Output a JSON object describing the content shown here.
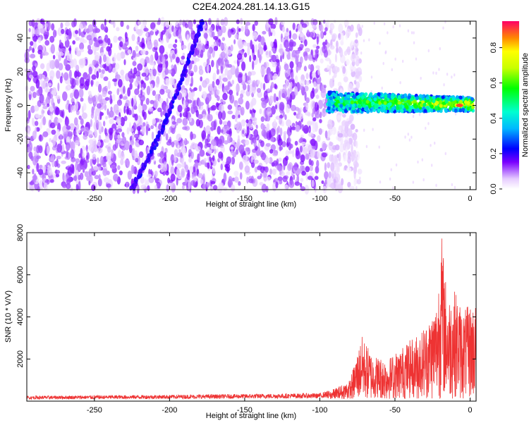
{
  "title": "C2E4.2024.281.14.13.G15",
  "chart_data": [
    {
      "type": "heatmap",
      "xlabel": "Height of straight line (km)",
      "ylabel": "Frequency (Hz)",
      "xlim": [
        -295,
        4
      ],
      "ylim": [
        -50,
        50
      ],
      "xticks": [
        -250,
        -200,
        -150,
        -100,
        -50,
        0
      ],
      "xtick_labels": [
        "-250",
        "-200",
        "-150",
        "-100",
        "-50",
        "0"
      ],
      "yticks": [
        40,
        20,
        0,
        -20,
        -40
      ],
      "ytick_labels": [
        "40",
        "20",
        "0",
        "-20",
        "-40"
      ],
      "colorbar": {
        "label": "Normalized spectral amplitude",
        "range": [
          0,
          0.95
        ],
        "ticks": [
          0.0,
          0.2,
          0.4,
          0.6,
          0.8
        ],
        "tick_labels": [
          "0.0",
          "0.2",
          "0.4",
          "0.6",
          "0.8"
        ]
      },
      "features": [
        {
          "name": "noise",
          "x_range": [
            -295,
            -85
          ],
          "level": 0.12
        },
        {
          "name": "streak",
          "x": [
            -225,
            -205,
            -190,
            -178
          ],
          "y": [
            -50,
            -15,
            20,
            50
          ],
          "level": 0.18
        },
        {
          "name": "signal-band",
          "x_range": [
            -95,
            2
          ],
          "y_center": 2,
          "y_halfwidth": 6,
          "level_range": [
            0.2,
            0.95
          ],
          "peak": {
            "x": -7,
            "y": 0,
            "level": 0.95
          }
        }
      ]
    },
    {
      "type": "line",
      "xlabel": "Height of straight line (km)",
      "ylabel": "SNR (10 * V/V)",
      "xlim": [
        -295,
        4
      ],
      "ylim": [
        0,
        8000
      ],
      "xticks": [
        -250,
        -200,
        -150,
        -100,
        -50,
        0
      ],
      "xtick_labels": [
        "-250",
        "-200",
        "-150",
        "-100",
        "-50",
        "0"
      ],
      "yticks": [
        8000,
        6000,
        4000,
        2000
      ],
      "ytick_labels": [
        "8000",
        "6000",
        "4000",
        "2000"
      ],
      "color": "#ee3333",
      "envelope": {
        "x": [
          -295,
          -200,
          -100,
          -90,
          -80,
          -72,
          -65,
          -55,
          -45,
          -35,
          -28,
          -22,
          -19,
          -15,
          -10,
          -5,
          0,
          4
        ],
        "y": [
          250,
          300,
          380,
          600,
          1000,
          3100,
          2200,
          2000,
          2600,
          3200,
          3800,
          4800,
          8000,
          4900,
          5300,
          4300,
          4600,
          4700
        ]
      }
    }
  ]
}
